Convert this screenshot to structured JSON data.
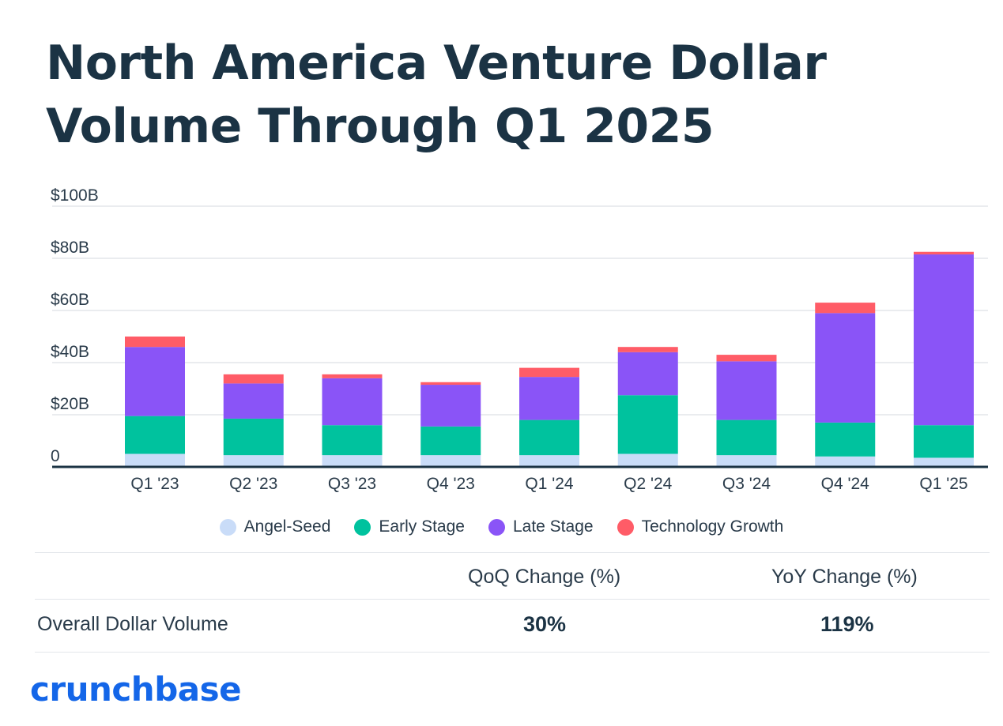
{
  "title": "North America Venture Dollar Volume Through Q1 2025",
  "chart_data": {
    "type": "bar",
    "stacked": true,
    "title": "North America Venture Dollar Volume Through Q1 2025",
    "xlabel": "",
    "ylabel": "",
    "ylim": [
      0,
      100
    ],
    "yticks": [
      0,
      20,
      40,
      60,
      80,
      100
    ],
    "ytick_labels": [
      "0",
      "$20B",
      "$40B",
      "$60B",
      "$80B",
      "$100B"
    ],
    "grid": true,
    "legend_position": "bottom",
    "categories": [
      "Q1 '23",
      "Q2 '23",
      "Q3 '23",
      "Q4 '23",
      "Q1 '24",
      "Q2 '24",
      "Q3 '24",
      "Q4 '24",
      "Q1 '25"
    ],
    "series": [
      {
        "name": "Angel-Seed",
        "color": "#c9dcf8",
        "values": [
          5,
          4.5,
          4.5,
          4.5,
          4.5,
          5,
          4.5,
          4,
          3.5
        ]
      },
      {
        "name": "Early Stage",
        "color": "#00c29e",
        "values": [
          14.5,
          14,
          11.5,
          11,
          13.5,
          22.5,
          13.5,
          13,
          12.5
        ]
      },
      {
        "name": "Late Stage",
        "color": "#8a54f7",
        "values": [
          26.5,
          13.5,
          18,
          16,
          16.5,
          16.5,
          22.5,
          42,
          65.5
        ]
      },
      {
        "name": "Technology Growth",
        "color": "#ff5c67",
        "values": [
          4,
          3.5,
          1.5,
          1,
          3.5,
          2,
          2.5,
          4,
          1
        ]
      }
    ]
  },
  "table": {
    "headers": [
      "QoQ Change (%)",
      "YoY Change (%)"
    ],
    "rows": [
      {
        "label": "Overall Dollar Volume",
        "qoq": "30%",
        "yoy": "119%"
      }
    ]
  },
  "logo_text": "crunchbase"
}
